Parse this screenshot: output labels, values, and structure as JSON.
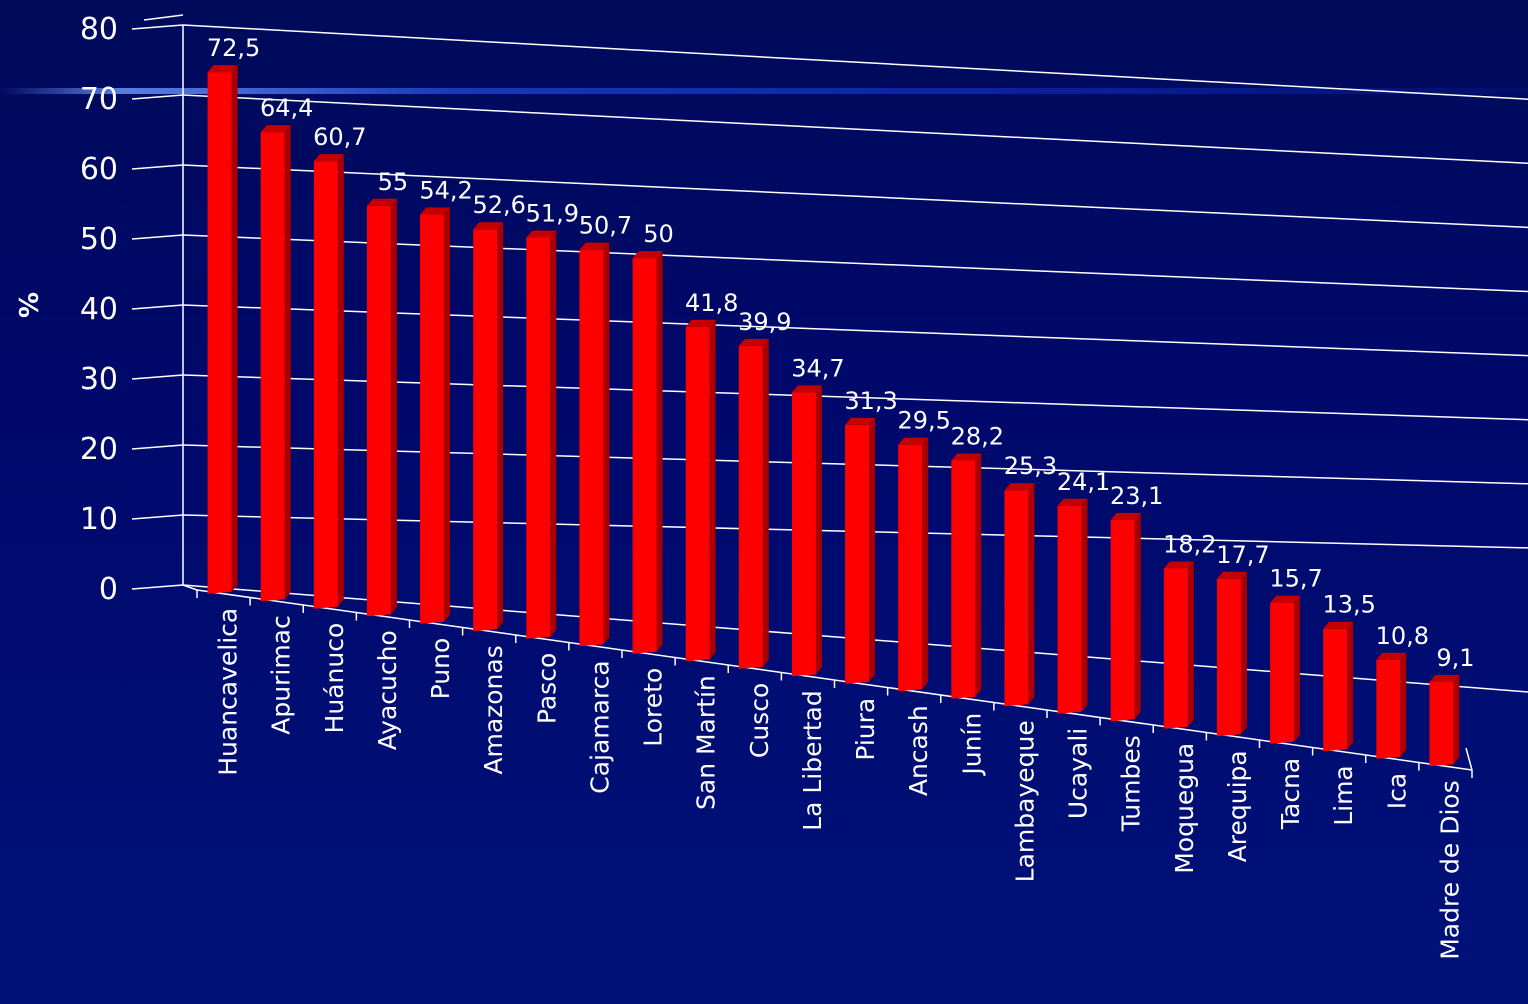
{
  "chart_data": {
    "type": "bar",
    "ylabel": "%",
    "ylim": [
      0,
      80
    ],
    "yticks": [
      0,
      10,
      20,
      30,
      40,
      50,
      60,
      70,
      80
    ],
    "grid": true,
    "categories": [
      "Huancavelica",
      "Apurimac",
      "Huánuco",
      "Ayacucho",
      "Puno",
      "Amazonas",
      "Pasco",
      "Cajamarca",
      "Loreto",
      "San Martín",
      "Cusco",
      "La Libertad",
      "Piura",
      "Ancash",
      "Junín",
      "Lambayeque",
      "Ucayali",
      "Tumbes",
      "Moquegua",
      "Arequipa",
      "Tacna",
      "Lima",
      "Ica",
      "Madre de Dios"
    ],
    "values": [
      72.5,
      64.4,
      60.7,
      55,
      54.2,
      52.6,
      51.9,
      50.7,
      50,
      41.8,
      39.9,
      34.7,
      31.3,
      29.5,
      28.2,
      25.3,
      24.1,
      23.1,
      18.2,
      17.7,
      15.7,
      13.5,
      10.8,
      9.1
    ],
    "value_labels": [
      "72,5",
      "64,4",
      "60,7",
      "55",
      "54,2",
      "52,6",
      "51,9",
      "50,7",
      "50",
      "41,8",
      "39,9",
      "34,7",
      "31,3",
      "29,5",
      "28,2",
      "25,3",
      "24,1",
      "23,1",
      "18,2",
      "17,7",
      "15,7",
      "13,5",
      "10,8",
      "9,1"
    ],
    "bar_color": "#ff0000",
    "bar_side_color": "#a80000",
    "bar_top_color": "#c40000",
    "axis_color": "#ffffff"
  }
}
